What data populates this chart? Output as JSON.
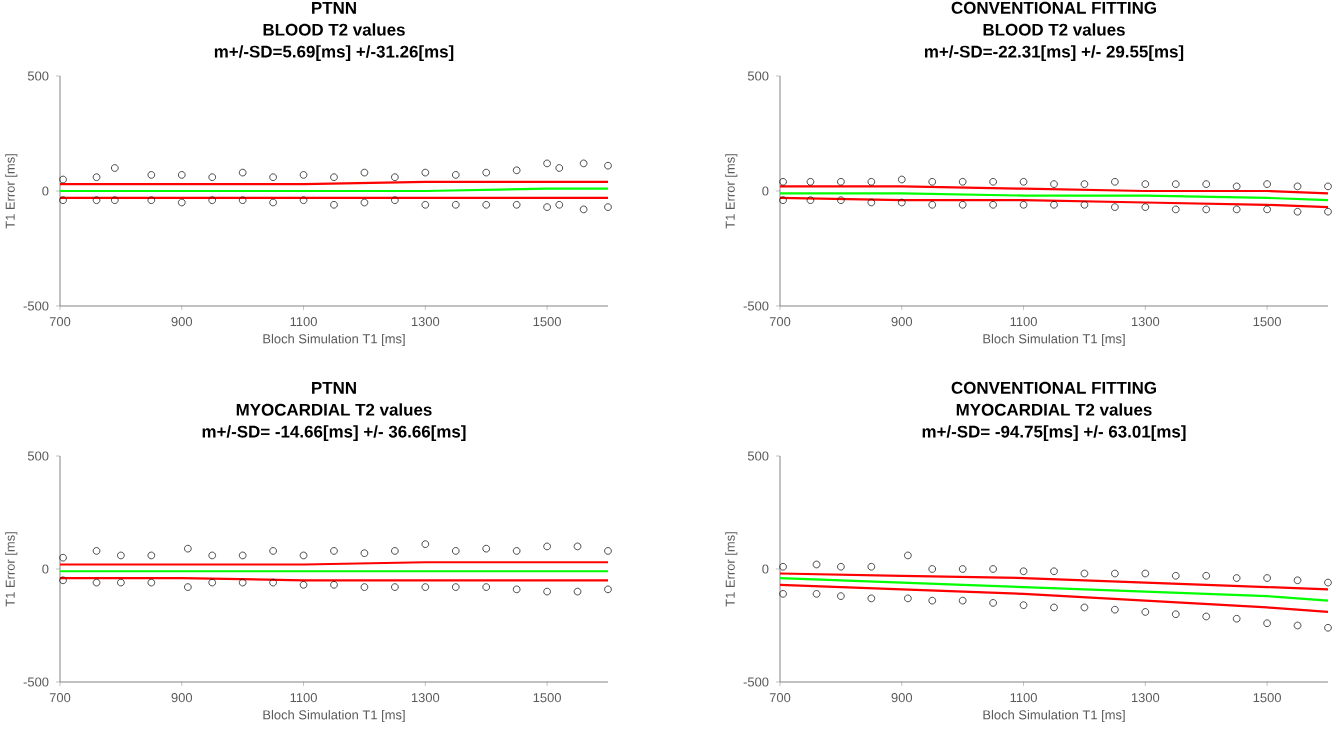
{
  "chart_data": [
    {
      "type": "scatter",
      "title": "PTNN",
      "subtitle": "BLOOD T2 values",
      "annotations": [
        "m+/-SD=5.69[ms] +/-31.26[ms]"
      ],
      "xlabel": "Bloch Simulation T1 [ms]",
      "ylabel": "T1 Error [ms]",
      "xlim": [
        700,
        1600
      ],
      "ylim": [
        -500,
        500
      ],
      "xticks": [
        700,
        900,
        1100,
        1300,
        1500
      ],
      "yticks": [
        -500,
        0,
        500
      ],
      "grid": false,
      "series": [
        {
          "type": "scatter",
          "marker": "circle",
          "color": "#000000",
          "x": [
            705,
            760,
            790,
            850,
            900,
            950,
            1000,
            1050,
            1100,
            1150,
            1200,
            1250,
            1300,
            1350,
            1400,
            1450,
            1500,
            1520,
            1560,
            1600,
            705,
            760,
            790,
            850,
            900,
            950,
            1000,
            1050,
            1100,
            1150,
            1200,
            1250,
            1300,
            1350,
            1400,
            1450,
            1500,
            1520,
            1560,
            1600
          ],
          "values": [
            50,
            60,
            100,
            70,
            70,
            60,
            80,
            60,
            70,
            60,
            80,
            60,
            80,
            70,
            80,
            90,
            120,
            100,
            120,
            110,
            -40,
            -40,
            -40,
            -40,
            -50,
            -40,
            -40,
            -50,
            -40,
            -60,
            -50,
            -40,
            -60,
            -60,
            -60,
            -60,
            -70,
            -60,
            -80,
            -70
          ]
        },
        {
          "type": "line",
          "marker": "none",
          "line_style": "solid",
          "color": "#ff0000",
          "x": [
            700,
            900,
            1100,
            1300,
            1500,
            1600
          ],
          "values": [
            30,
            30,
            30,
            40,
            40,
            40
          ]
        },
        {
          "type": "line",
          "marker": "none",
          "line_style": "solid",
          "color": "#ff0000",
          "x": [
            700,
            900,
            1100,
            1300,
            1500,
            1600
          ],
          "values": [
            -30,
            -30,
            -30,
            -30,
            -30,
            -30
          ]
        },
        {
          "type": "line",
          "marker": "none",
          "line_style": "solid",
          "color": "#00ff00",
          "x": [
            700,
            900,
            1100,
            1300,
            1500,
            1600
          ],
          "values": [
            0,
            0,
            0,
            0,
            10,
            10
          ]
        }
      ]
    },
    {
      "type": "scatter",
      "title": "CONVENTIONAL FITTING",
      "subtitle": "BLOOD T2 values",
      "annotations": [
        "m+/-SD=-22.31[ms] +/- 29.55[ms]"
      ],
      "xlabel": "Bloch Simulation T1 [ms]",
      "ylabel": "T1 Error [ms]",
      "xlim": [
        700,
        1600
      ],
      "ylim": [
        -500,
        500
      ],
      "xticks": [
        700,
        900,
        1100,
        1300,
        1500
      ],
      "yticks": [
        -500,
        0,
        500
      ],
      "grid": false,
      "series": [
        {
          "type": "scatter",
          "marker": "circle",
          "color": "#000000",
          "x": [
            705,
            750,
            800,
            850,
            900,
            950,
            1000,
            1050,
            1100,
            1150,
            1200,
            1250,
            1300,
            1350,
            1400,
            1450,
            1500,
            1550,
            1600,
            705,
            750,
            800,
            850,
            900,
            950,
            1000,
            1050,
            1100,
            1150,
            1200,
            1250,
            1300,
            1350,
            1400,
            1450,
            1500,
            1550,
            1600
          ],
          "values": [
            40,
            40,
            40,
            40,
            50,
            40,
            40,
            40,
            40,
            30,
            30,
            40,
            30,
            30,
            30,
            20,
            30,
            20,
            20,
            -40,
            -40,
            -40,
            -50,
            -50,
            -60,
            -60,
            -60,
            -60,
            -60,
            -60,
            -70,
            -70,
            -80,
            -80,
            -80,
            -80,
            -90,
            -90
          ]
        },
        {
          "type": "line",
          "marker": "none",
          "line_style": "solid",
          "color": "#ff0000",
          "x": [
            700,
            900,
            1100,
            1300,
            1500,
            1600
          ],
          "values": [
            20,
            20,
            10,
            0,
            0,
            -10
          ]
        },
        {
          "type": "line",
          "marker": "none",
          "line_style": "solid",
          "color": "#ff0000",
          "x": [
            700,
            900,
            1100,
            1300,
            1500,
            1600
          ],
          "values": [
            -30,
            -40,
            -40,
            -50,
            -60,
            -70
          ]
        },
        {
          "type": "line",
          "marker": "none",
          "line_style": "solid",
          "color": "#00ff00",
          "x": [
            700,
            900,
            1100,
            1300,
            1500,
            1600
          ],
          "values": [
            -10,
            -10,
            -20,
            -20,
            -30,
            -40
          ]
        }
      ]
    },
    {
      "type": "scatter",
      "title": "PTNN",
      "subtitle": "MYOCARDIAL T2 values",
      "annotations": [
        "m+/-SD= -14.66[ms] +/- 36.66[ms]"
      ],
      "xlabel": "Bloch Simulation T1 [ms]",
      "ylabel": "T1 Error [ms]",
      "xlim": [
        700,
        1600
      ],
      "ylim": [
        -500,
        500
      ],
      "xticks": [
        700,
        900,
        1100,
        1300,
        1500
      ],
      "yticks": [
        -500,
        0,
        500
      ],
      "grid": false,
      "series": [
        {
          "type": "scatter",
          "marker": "circle",
          "color": "#000000",
          "x": [
            705,
            760,
            800,
            850,
            910,
            950,
            1000,
            1050,
            1100,
            1150,
            1200,
            1250,
            1300,
            1350,
            1400,
            1450,
            1500,
            1550,
            1600,
            705,
            760,
            800,
            850,
            910,
            950,
            1000,
            1050,
            1100,
            1150,
            1200,
            1250,
            1300,
            1350,
            1400,
            1450,
            1500,
            1550,
            1600
          ],
          "values": [
            50,
            80,
            60,
            60,
            90,
            60,
            60,
            80,
            60,
            80,
            70,
            80,
            110,
            80,
            90,
            80,
            100,
            100,
            80,
            -50,
            -60,
            -60,
            -60,
            -80,
            -60,
            -60,
            -60,
            -70,
            -70,
            -80,
            -80,
            -80,
            -80,
            -80,
            -90,
            -100,
            -100,
            -90
          ]
        },
        {
          "type": "line",
          "marker": "none",
          "line_style": "solid",
          "color": "#ff0000",
          "x": [
            700,
            900,
            1100,
            1300,
            1500,
            1600
          ],
          "values": [
            20,
            20,
            20,
            30,
            30,
            30
          ]
        },
        {
          "type": "line",
          "marker": "none",
          "line_style": "solid",
          "color": "#ff0000",
          "x": [
            700,
            900,
            1100,
            1300,
            1500,
            1600
          ],
          "values": [
            -40,
            -40,
            -50,
            -50,
            -50,
            -50
          ]
        },
        {
          "type": "line",
          "marker": "none",
          "line_style": "solid",
          "color": "#00ff00",
          "x": [
            700,
            900,
            1100,
            1300,
            1500,
            1600
          ],
          "values": [
            -10,
            -10,
            -10,
            -10,
            -10,
            -10
          ]
        }
      ]
    },
    {
      "type": "scatter",
      "title": "CONVENTIONAL FITTING",
      "subtitle": "MYOCARDIAL T2 values",
      "annotations": [
        "m+/-SD= -94.75[ms] +/- 63.01[ms]"
      ],
      "xlabel": "Bloch Simulation T1 [ms]",
      "ylabel": "T1 Error [ms]",
      "xlim": [
        700,
        1600
      ],
      "ylim": [
        -500,
        500
      ],
      "xticks": [
        700,
        900,
        1100,
        1300,
        1500
      ],
      "yticks": [
        -500,
        0,
        500
      ],
      "grid": false,
      "series": [
        {
          "type": "scatter",
          "marker": "circle",
          "color": "#000000",
          "x": [
            705,
            760,
            800,
            850,
            910,
            950,
            1000,
            1050,
            1100,
            1150,
            1200,
            1250,
            1300,
            1350,
            1400,
            1450,
            1500,
            1550,
            1600,
            705,
            760,
            800,
            850,
            910,
            950,
            1000,
            1050,
            1100,
            1150,
            1200,
            1250,
            1300,
            1350,
            1400,
            1450,
            1500,
            1550,
            1600
          ],
          "values": [
            10,
            20,
            10,
            10,
            60,
            0,
            0,
            0,
            -10,
            -10,
            -20,
            -20,
            -20,
            -30,
            -30,
            -40,
            -40,
            -50,
            -60,
            -110,
            -110,
            -120,
            -130,
            -130,
            -140,
            -140,
            -150,
            -160,
            -170,
            -170,
            -180,
            -190,
            -200,
            -210,
            -220,
            -240,
            -250,
            -260
          ]
        },
        {
          "type": "line",
          "marker": "none",
          "line_style": "solid",
          "color": "#ff0000",
          "x": [
            700,
            900,
            1100,
            1300,
            1500,
            1600
          ],
          "values": [
            -20,
            -30,
            -40,
            -60,
            -80,
            -90
          ]
        },
        {
          "type": "line",
          "marker": "none",
          "line_style": "solid",
          "color": "#ff0000",
          "x": [
            700,
            900,
            1100,
            1300,
            1500,
            1600
          ],
          "values": [
            -70,
            -90,
            -110,
            -140,
            -170,
            -190
          ]
        },
        {
          "type": "line",
          "marker": "none",
          "line_style": "solid",
          "color": "#00ff00",
          "x": [
            700,
            900,
            1100,
            1300,
            1500,
            1600
          ],
          "values": [
            -40,
            -60,
            -80,
            -100,
            -120,
            -140
          ]
        }
      ]
    }
  ]
}
